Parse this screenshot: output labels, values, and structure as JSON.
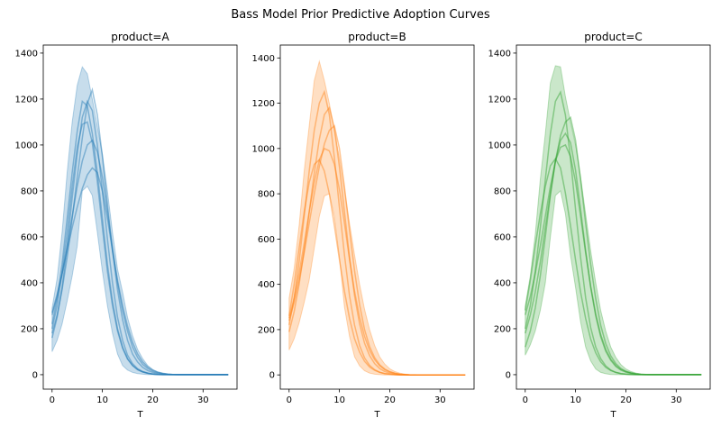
{
  "chart_data": {
    "type": "line",
    "title": "Bass Model Prior Predictive Adoption Curves",
    "x": [
      0,
      1,
      2,
      3,
      4,
      5,
      6,
      7,
      8,
      9,
      10,
      11,
      12,
      13,
      14,
      15,
      16,
      17,
      18,
      19,
      20,
      21,
      22,
      23,
      24,
      25,
      26,
      27,
      28,
      29,
      30,
      31,
      32,
      33,
      34,
      35
    ],
    "xlabel": "T",
    "xlim": [
      -1.75,
      36.75
    ],
    "xticks": [
      0,
      10,
      20,
      30
    ],
    "yticks": [
      0,
      200,
      400,
      600,
      800,
      1000,
      1200,
      1400
    ],
    "grid": false,
    "panels": [
      {
        "title": "product=A",
        "color": "#1f77b4",
        "ylim": [
          -63,
          1435
        ],
        "band_upper": [
          290,
          420,
          620,
          880,
          1100,
          1260,
          1340,
          1310,
          1200,
          1080,
          960,
          800,
          620,
          460,
          360,
          250,
          170,
          110,
          70,
          40,
          22,
          12,
          6,
          3,
          1,
          0,
          0,
          0,
          0,
          0,
          0,
          0,
          0,
          0,
          0,
          0
        ],
        "band_lower": [
          100,
          150,
          220,
          320,
          430,
          560,
          800,
          820,
          780,
          620,
          450,
          300,
          180,
          90,
          40,
          20,
          10,
          5,
          2,
          0,
          0,
          0,
          0,
          0,
          0,
          0,
          0,
          0,
          0,
          0,
          0,
          0,
          0,
          0,
          0,
          0
        ],
        "series": [
          {
            "values": [
              220,
              330,
              480,
              680,
              880,
              1060,
              1190,
              1170,
              1050,
              880,
              680,
              480,
              320,
              200,
              120,
              70,
              40,
              22,
              12,
              6,
              3,
              1,
              0,
              0,
              0,
              0,
              0,
              0,
              0,
              0,
              0,
              0,
              0,
              0,
              0,
              0
            ]
          },
          {
            "values": [
              180,
              260,
              370,
              510,
              680,
              860,
              1030,
              1180,
              1240,
              1130,
              950,
              740,
              540,
              370,
              240,
              150,
              90,
              55,
              32,
              18,
              10,
              5,
              2,
              1,
              0,
              0,
              0,
              0,
              0,
              0,
              0,
              0,
              0,
              0,
              0,
              0
            ]
          },
          {
            "values": [
              260,
              340,
              440,
              560,
              690,
              820,
              930,
              1000,
              1020,
              970,
              860,
              710,
              550,
              400,
              280,
              190,
              120,
              75,
              45,
              27,
              15,
              8,
              4,
              2,
              1,
              0,
              0,
              0,
              0,
              0,
              0,
              0,
              0,
              0,
              0,
              0
            ]
          },
          {
            "values": [
              270,
              350,
              440,
              540,
              640,
              730,
              810,
              870,
              900,
              880,
              800,
              680,
              540,
              410,
              300,
              210,
              140,
              90,
              56,
              34,
              20,
              11,
              6,
              3,
              1,
              0,
              0,
              0,
              0,
              0,
              0,
              0,
              0,
              0,
              0,
              0
            ]
          },
          {
            "values": [
              200,
              300,
              440,
              620,
              820,
              990,
              1090,
              1100,
              1010,
              840,
              640,
              450,
              300,
              190,
              115,
              68,
              40,
              22,
              12,
              6,
              3,
              1,
              0,
              0,
              0,
              0,
              0,
              0,
              0,
              0,
              0,
              0,
              0,
              0,
              0,
              0
            ]
          },
          {
            "values": [
              160,
              250,
              380,
              560,
              770,
              960,
              1120,
              1190,
              1150,
              1000,
              800,
              590,
              400,
              250,
              150,
              85,
              48,
              26,
              14,
              7,
              3,
              1,
              0,
              0,
              0,
              0,
              0,
              0,
              0,
              0,
              0,
              0,
              0,
              0,
              0,
              0
            ]
          }
        ]
      },
      {
        "title": "product=B",
        "color": "#ff7f0e",
        "ylim": [
          -63,
          1457
        ],
        "band_upper": [
          340,
          470,
          660,
          900,
          1100,
          1300,
          1385,
          1300,
          1200,
          1080,
          960,
          820,
          670,
          530,
          400,
          290,
          200,
          130,
          80,
          48,
          27,
          15,
          8,
          4,
          2,
          1,
          0,
          0,
          0,
          0,
          0,
          0,
          0,
          0,
          0,
          0
        ],
        "band_lower": [
          110,
          160,
          230,
          320,
          420,
          560,
          700,
          790,
          800,
          700,
          520,
          300,
          170,
          80,
          40,
          18,
          8,
          3,
          1,
          0,
          0,
          0,
          0,
          0,
          0,
          0,
          0,
          0,
          0,
          0,
          0,
          0,
          0,
          0,
          0,
          0
        ],
        "series": [
          {
            "values": [
              220,
              340,
              500,
              700,
              900,
              1080,
              1200,
              1250,
              1150,
              960,
              740,
              530,
              350,
              220,
              130,
              75,
              42,
              23,
              12,
              6,
              3,
              1,
              0,
              0,
              0,
              0,
              0,
              0,
              0,
              0,
              0,
              0,
              0,
              0,
              0,
              0
            ]
          },
          {
            "values": [
              190,
              280,
              400,
              550,
              720,
              890,
              1040,
              1150,
              1180,
              1090,
              920,
              720,
              520,
              350,
              225,
              140,
              85,
              50,
              28,
              15,
              8,
              4,
              2,
              1,
              0,
              0,
              0,
              0,
              0,
              0,
              0,
              0,
              0,
              0,
              0,
              0
            ]
          },
          {
            "values": [
              240,
              320,
              420,
              540,
              670,
              800,
              920,
              1020,
              1080,
              1100,
              1000,
              830,
              640,
              460,
              310,
              200,
              125,
              76,
              45,
              26,
              14,
              7,
              3,
              1,
              0,
              0,
              0,
              0,
              0,
              0,
              0,
              0,
              0,
              0,
              0,
              0
            ]
          },
          {
            "values": [
              260,
              400,
              560,
              720,
              850,
              930,
              950,
              900,
              800,
              660,
              510,
              370,
              250,
              160,
              100,
              60,
              35,
              20,
              11,
              6,
              3,
              1,
              0,
              0,
              0,
              0,
              0,
              0,
              0,
              0,
              0,
              0,
              0,
              0,
              0,
              0
            ]
          },
          {
            "values": [
              250,
              340,
              450,
              580,
              720,
              850,
              950,
              1000,
              990,
              930,
              820,
              670,
              510,
              370,
              255,
              170,
              108,
              67,
              40,
              23,
              13,
              7,
              3,
              1,
              0,
              0,
              0,
              0,
              0,
              0,
              0,
              0,
              0,
              0,
              0,
              0
            ]
          }
        ]
      },
      {
        "title": "product=C",
        "color": "#2ca02c",
        "ylim": [
          -63,
          1435
        ],
        "band_upper": [
          300,
          430,
          610,
          850,
          1050,
          1270,
          1345,
          1340,
          1210,
          1100,
          1000,
          860,
          700,
          540,
          400,
          280,
          190,
          120,
          75,
          44,
          25,
          14,
          7,
          3,
          1,
          0,
          0,
          0,
          0,
          0,
          0,
          0,
          0,
          0,
          0,
          0
        ],
        "band_lower": [
          85,
          130,
          190,
          280,
          400,
          600,
          780,
          800,
          700,
          520,
          380,
          230,
          120,
          60,
          25,
          10,
          4,
          1,
          0,
          0,
          0,
          0,
          0,
          0,
          0,
          0,
          0,
          0,
          0,
          0,
          0,
          0,
          0,
          0,
          0,
          0
        ],
        "series": [
          {
            "values": [
              200,
              300,
              450,
              640,
              850,
              1050,
              1190,
              1230,
              1130,
              940,
              720,
              510,
              335,
              205,
              120,
              70,
              38,
              20,
              10,
              5,
              2,
              1,
              0,
              0,
              0,
              0,
              0,
              0,
              0,
              0,
              0,
              0,
              0,
              0,
              0,
              0
            ]
          },
          {
            "values": [
              180,
              260,
              360,
              490,
              640,
              790,
              930,
              1040,
              1100,
              1120,
              1020,
              850,
              660,
              480,
              330,
              215,
              135,
              82,
              48,
              27,
              15,
              8,
              4,
              2,
              1,
              0,
              0,
              0,
              0,
              0,
              0,
              0,
              0,
              0,
              0,
              0
            ]
          },
          {
            "values": [
              260,
              340,
              440,
              560,
              690,
              820,
              930,
              990,
              1000,
              950,
              840,
              690,
              530,
              385,
              265,
              175,
              110,
              68,
              40,
              23,
              13,
              7,
              3,
              1,
              0,
              0,
              0,
              0,
              0,
              0,
              0,
              0,
              0,
              0,
              0,
              0
            ]
          },
          {
            "values": [
              280,
              410,
              560,
              700,
              820,
              910,
              940,
              900,
              790,
              650,
              500,
              360,
              245,
              155,
              95,
              56,
              32,
              18,
              10,
              5,
              2,
              1,
              0,
              0,
              0,
              0,
              0,
              0,
              0,
              0,
              0,
              0,
              0,
              0,
              0,
              0
            ]
          },
          {
            "values": [
              120,
              190,
              290,
              430,
              600,
              780,
              930,
              1020,
              1050,
              1010,
              890,
              720,
              540,
              380,
              255,
              165,
              102,
              62,
              36,
              20,
              11,
              6,
              3,
              1,
              0,
              0,
              0,
              0,
              0,
              0,
              0,
              0,
              0,
              0,
              0,
              0
            ]
          }
        ]
      }
    ]
  }
}
